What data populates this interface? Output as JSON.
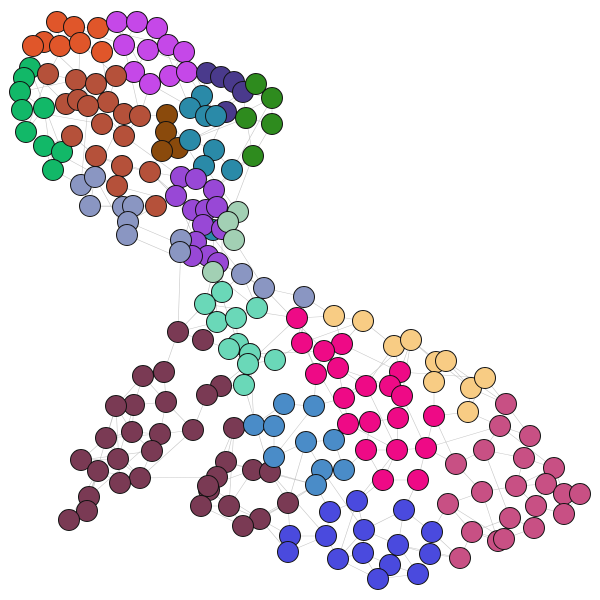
{
  "graph": {
    "background": "#ffffff",
    "edge_color": "#b4b4b4",
    "node_outline": "#111111",
    "communities": [
      {
        "name": "orange",
        "color": "#E0562A"
      },
      {
        "name": "magenta",
        "color": "#C548E8"
      },
      {
        "name": "green",
        "color": "#12B868"
      },
      {
        "name": "brick",
        "color": "#B5513A"
      },
      {
        "name": "brown",
        "color": "#8A4A0C"
      },
      {
        "name": "indigo",
        "color": "#4A3A8C"
      },
      {
        "name": "forest",
        "color": "#2E8B1E"
      },
      {
        "name": "teal",
        "color": "#2A8AA8"
      },
      {
        "name": "purple",
        "color": "#9848D6"
      },
      {
        "name": "slate",
        "color": "#8A96C2"
      },
      {
        "name": "sage",
        "color": "#A2D0B4"
      },
      {
        "name": "aqua",
        "color": "#6AD8B8"
      },
      {
        "name": "plum",
        "color": "#7A3A54"
      },
      {
        "name": "hotpink",
        "color": "#EE0A86"
      },
      {
        "name": "peach",
        "color": "#F8CC84"
      },
      {
        "name": "steelblue",
        "color": "#4A8CC8"
      },
      {
        "name": "blue",
        "color": "#4A4ADE"
      },
      {
        "name": "rose",
        "color": "#C85084"
      }
    ]
  }
}
